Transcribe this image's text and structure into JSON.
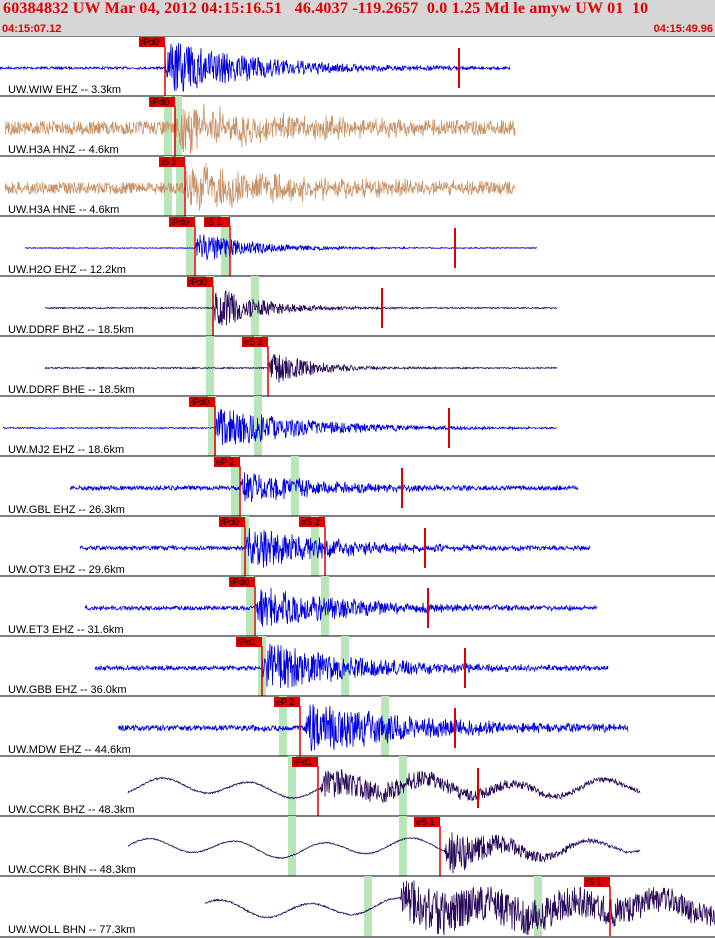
{
  "header": {
    "title": "60384832 UW Mar 04, 2012 04:15:16.51   46.4037 -119.2657  0.0 1.25 Md le amyw UW 01  10",
    "start_time": "04:15:07.12",
    "end_time": "04:15:49.96"
  },
  "colors": {
    "header_bg": "#d6d6d6",
    "header_text": "#e00000",
    "trace_blue": "#0000e0",
    "trace_tan": "#c8956a",
    "trace_purple": "#2a0a5a",
    "pick": "#e00000",
    "window": "#b8e6b8"
  },
  "traces": [
    {
      "label": "UW.WIW EHZ -- 3.3km",
      "color": "blue",
      "x0": 0,
      "x1": 510,
      "onset": 165,
      "amp": 30,
      "decay": 90,
      "noise": 1.2,
      "style": "noise",
      "windows": [],
      "picks": [
        {
          "text": "iPd0",
          "x": 165,
          "flag": "P"
        }
      ],
      "red_spike": 459
    },
    {
      "label": "UW.H3A HNZ -- 4.6km",
      "color": "tan",
      "x0": 5,
      "x1": 515,
      "onset": 175,
      "amp": 24,
      "decay": 120,
      "noise": 7,
      "style": "noise",
      "windows": [
        168,
        178
      ],
      "picks": [
        {
          "text": "iPd0",
          "x": 175,
          "flag": "P"
        }
      ],
      "red_spike": null
    },
    {
      "label": "UW.H3A HNE -- 4.6km",
      "color": "tan",
      "x0": 5,
      "x1": 515,
      "onset": 185,
      "amp": 24,
      "decay": 120,
      "noise": 6,
      "style": "noise",
      "windows": [
        168,
        180
      ],
      "picks": [
        {
          "text": "iS 1",
          "x": 185,
          "flag": "S"
        }
      ],
      "red_spike": null
    },
    {
      "label": "UW.H2O EHZ -- 12.2km",
      "color": "blue",
      "x0": 25,
      "x1": 537,
      "onset": 195,
      "amp": 16,
      "decay": 60,
      "noise": 0.5,
      "style": "noise",
      "windows": [
        190,
        225
      ],
      "picks": [
        {
          "text": "iPd0",
          "x": 195,
          "flag": "P"
        },
        {
          "text": "iS 1",
          "x": 230,
          "flag": "S"
        }
      ],
      "red_spike": 455
    },
    {
      "label": "UW.DDRF BHZ -- 18.5km",
      "color": "purple",
      "x0": 45,
      "x1": 557,
      "onset": 213,
      "amp": 24,
      "decay": 45,
      "noise": 0.7,
      "style": "noise",
      "windows": [
        210,
        255
      ],
      "picks": [
        {
          "text": "iPd0",
          "x": 213,
          "flag": "P"
        }
      ],
      "red_spike": 382
    },
    {
      "label": "UW.DDRF BHE -- 18.5km",
      "color": "purple",
      "x0": 45,
      "x1": 557,
      "onset": 268,
      "amp": 20,
      "decay": 40,
      "noise": 0.7,
      "style": "noise",
      "windows": [
        210,
        258
      ],
      "picks": [
        {
          "text": "eS 2",
          "x": 268,
          "flag": "S"
        }
      ],
      "red_spike": null
    },
    {
      "label": "UW.MJ2 EHZ -- 18.6km",
      "color": "blue",
      "x0": 3,
      "x1": 557,
      "onset": 215,
      "amp": 22,
      "decay": 90,
      "noise": 0.6,
      "style": "noise",
      "windows": [
        212,
        258
      ],
      "picks": [
        {
          "text": "iPd0",
          "x": 215,
          "flag": "P"
        }
      ],
      "red_spike": 449
    },
    {
      "label": "UW.GBL EHZ -- 26.3km",
      "color": "blue",
      "x0": 70,
      "x1": 578,
      "onset": 240,
      "amp": 18,
      "decay": 80,
      "noise": 2.2,
      "style": "noise",
      "windows": [
        235,
        295
      ],
      "picks": [
        {
          "text": "eP 2",
          "x": 240,
          "flag": "P"
        }
      ],
      "red_spike": 402
    },
    {
      "label": "UW.OT3 EHZ -- 29.6km",
      "color": "blue",
      "x0": 80,
      "x1": 590,
      "onset": 245,
      "amp": 22,
      "decay": 90,
      "noise": 2.0,
      "style": "noise",
      "windows": [
        245,
        315
      ],
      "picks": [
        {
          "text": "iPd0",
          "x": 245,
          "flag": "P"
        },
        {
          "text": "eS 2",
          "x": 325,
          "flag": "S"
        }
      ],
      "red_spike": 425
    },
    {
      "label": "UW.ET3 EHZ -- 31.6km",
      "color": "blue",
      "x0": 85,
      "x1": 597,
      "onset": 255,
      "amp": 24,
      "decay": 90,
      "noise": 2.0,
      "style": "noise",
      "windows": [
        250,
        325
      ],
      "picks": [
        {
          "text": "iPd0",
          "x": 255,
          "flag": "P"
        }
      ],
      "red_spike": 428
    },
    {
      "label": "UW.GBB EHZ -- 36.0km",
      "color": "blue",
      "x0": 95,
      "x1": 608,
      "onset": 262,
      "amp": 26,
      "decay": 100,
      "noise": 2.2,
      "style": "noise",
      "windows": [
        262,
        345
      ],
      "picks": [
        {
          "text": "iPd1",
          "x": 262,
          "flag": "P"
        }
      ],
      "red_spike": 465
    },
    {
      "label": "UW.MDW EHZ -- 44.6km",
      "color": "blue",
      "x0": 118,
      "x1": 628,
      "onset": 305,
      "amp": 28,
      "decay": 110,
      "noise": 2.8,
      "style": "noise",
      "windows": [
        283,
        385
      ],
      "picks": [
        {
          "text": "eP 2",
          "x": 300,
          "flag": "P"
        }
      ],
      "red_spike": 455
    },
    {
      "label": "UW.CCRK BHZ -- 48.3km",
      "color": "purple",
      "x0": 128,
      "x1": 640,
      "onset": 320,
      "amp": 16,
      "decay": 150,
      "noise": 0.8,
      "style": "wave",
      "windows": [
        292,
        403
      ],
      "picks": [
        {
          "text": "iPd1",
          "x": 318,
          "flag": "P"
        }
      ],
      "red_spike": 478
    },
    {
      "label": "UW.CCRK BHN -- 48.3km",
      "color": "purple",
      "x0": 128,
      "x1": 640,
      "onset": 445,
      "amp": 24,
      "decay": 60,
      "noise": 0.6,
      "style": "wave",
      "windows": [
        292,
        403
      ],
      "picks": [
        {
          "text": "eS 1",
          "x": 440,
          "flag": "S"
        }
      ],
      "red_spike": null
    },
    {
      "label": "UW.WOLL BHN -- 77.3km",
      "color": "purple",
      "x0": 205,
      "x1": 715,
      "onset": 400,
      "amp": 24,
      "decay": 400,
      "noise": 0.8,
      "style": "wave",
      "windows": [
        368,
        538
      ],
      "picks": [
        {
          "text": "iS 1",
          "x": 610,
          "flag": "S"
        }
      ],
      "red_spike": null
    }
  ]
}
